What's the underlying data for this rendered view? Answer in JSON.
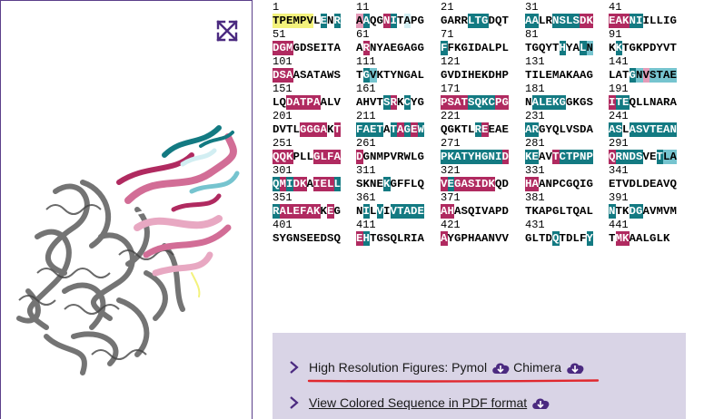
{
  "viewer": {
    "expand_icon": "expand-arrows-icon"
  },
  "sequence": [
    {
      "start": "1",
      "res": "TPEMPVLENR",
      "c": "6666660505"
    },
    {
      "start": "11",
      "res": "AAQGNITAPG",
      "c": "2500150300"
    },
    {
      "start": "21",
      "res": "GARRLTGDQT",
      "c": "0000555000"
    },
    {
      "start": "31",
      "res": "AALRNSLSDK",
      "c": "5500555511"
    },
    {
      "start": "41",
      "res": "EAKNIILLIG",
      "c": "1115500000"
    },
    {
      "start": "51",
      "res": "DGMGDSEITA",
      "c": "1110000000"
    },
    {
      "start": "61",
      "res": "ARNYAEGAGG",
      "c": "0100000000"
    },
    {
      "start": "71",
      "res": "FFKGIDALPL",
      "c": "5000000000"
    },
    {
      "start": "81",
      "res": "TGQYTHYALN",
      "c": "0000050054"
    },
    {
      "start": "91",
      "res": "KKTGKPDYVT",
      "c": "0500000000"
    },
    {
      "start": "101",
      "res": "DSAASATAWS",
      "c": "1110000000"
    },
    {
      "start": "111",
      "res": "TGVKTYNGAL",
      "c": "0540000000"
    },
    {
      "start": "121",
      "res": "GVDIHEKDHP",
      "c": "0000000000"
    },
    {
      "start": "131",
      "res": "TILEMAKAAG",
      "c": "0000000000"
    },
    {
      "start": "141",
      "res": "LATGNVSTAE",
      "c": "0005424444"
    },
    {
      "start": "151",
      "res": "LQDATPAALV",
      "c": "0011111000"
    },
    {
      "start": "161",
      "res": "AHVTSRKCYG",
      "c": "0000510500"
    },
    {
      "start": "171",
      "res": "PSATSQKCPG",
      "c": "1111555511"
    },
    {
      "start": "181",
      "res": "NALEKGGKGS",
      "c": "0555550000"
    },
    {
      "start": "191",
      "res": "ITEQLLNARA",
      "c": "1550000000"
    },
    {
      "start": "201",
      "res": "DVTLGGGAKT",
      "c": "0000111101"
    },
    {
      "start": "211",
      "res": "FAETATAGEW",
      "c": "5555051515"
    },
    {
      "start": "221",
      "res": "QGKTLREEAE",
      "c": "0000051000"
    },
    {
      "start": "231",
      "res": "ARGYQLVSDA",
      "c": "5500000000"
    },
    {
      "start": "241",
      "res": "ASLASVTEAN",
      "c": "5505555555"
    },
    {
      "start": "251",
      "res": "QQKPLLGLFA",
      "c": "1110001111"
    },
    {
      "start": "261",
      "res": "DGNMPVRWLG",
      "c": "1000000000"
    },
    {
      "start": "271",
      "res": "PKATYHGNID",
      "c": "5555555551"
    },
    {
      "start": "281",
      "res": "KEAVTCTPNP",
      "c": "5500155555"
    },
    {
      "start": "291",
      "res": "QRNDSVETLA",
      "c": "1555500544"
    },
    {
      "start": "301",
      "res": "QMIDKAIELL",
      "c": "5151101115"
    },
    {
      "start": "311",
      "res": "SKNEKGFFLQ",
      "c": "0000500000"
    },
    {
      "start": "321",
      "res": "VEGASIDKQD",
      "c": "1511111100"
    },
    {
      "start": "331",
      "res": "HAANPCGQIG",
      "c": "1100000000"
    },
    {
      "start": "341",
      "res": "ETVDLDEAVQ",
      "c": "0000000000"
    },
    {
      "start": "351",
      "res": "RALEFAKKEG",
      "c": "5111111010"
    },
    {
      "start": "361",
      "res": "NILVIVTADE",
      "c": "0505055555"
    },
    {
      "start": "371",
      "res": "AHASQIVAPD",
      "c": "1100000000"
    },
    {
      "start": "381",
      "res": "TKAPGLTQAL",
      "c": "0000000000"
    },
    {
      "start": "391",
      "res": "NTKDGAVMVM",
      "c": "5005500000"
    },
    {
      "start": "401",
      "res": "SYGNSEEDSQ",
      "c": "0000000000"
    },
    {
      "start": "411",
      "res": "EHTGSQLRIA",
      "c": "1500000000"
    },
    {
      "start": "421",
      "res": "AYGPHAANVV",
      "c": "1000000000"
    },
    {
      "start": "431",
      "res": "GLTDQTDLFY",
      "c": "0000500005"
    },
    {
      "start": "441",
      "res": "TMKAALGLK",
      "c": "011000000"
    }
  ],
  "downloads": {
    "hires_label": "High Resolution Figures: Pymol",
    "chimera_label": "Chimera",
    "pdf_label": "View Colored Sequence in PDF format",
    "chevron_icon": "chevron-right-icon",
    "download_icon": "cloud-download-icon"
  },
  "colors": {
    "accent": "#4b2a80",
    "conserved_dark_magenta": "#b02a60",
    "conserved_light_magenta": "#e59bb8",
    "variable_light_cyan": "#d2eef2",
    "variable_mid_cyan": "#76c4cf",
    "variable_dark_teal": "#137a82",
    "insufficient_yellow": "#f3f27c",
    "panel_bg": "#d9d4e6",
    "highlight_underline": "#e0282e"
  }
}
